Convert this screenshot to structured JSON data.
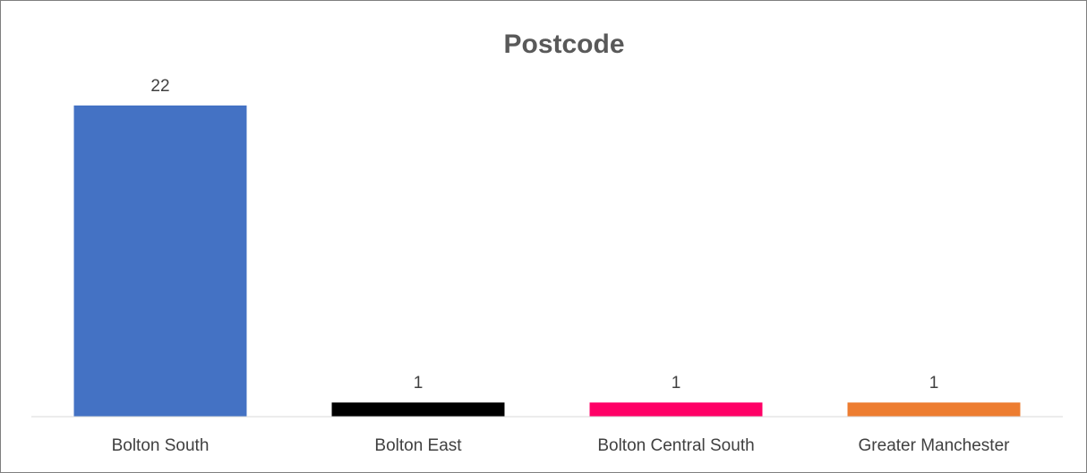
{
  "chart_data": {
    "type": "bar",
    "title": "Postcode",
    "xlabel": "",
    "ylabel": "",
    "categories": [
      "Bolton South",
      "Bolton East",
      "Bolton Central South",
      "Greater Manchester"
    ],
    "values": [
      22,
      1,
      1,
      1
    ],
    "data_labels": [
      "22",
      "1",
      "1",
      "1"
    ],
    "colors": [
      "#4472c4",
      "#000000",
      "#ff0066",
      "#ed7d31"
    ],
    "axis_color": "#d9d9d9",
    "ylim": [
      0,
      22
    ],
    "grid": false,
    "legend": "none"
  }
}
